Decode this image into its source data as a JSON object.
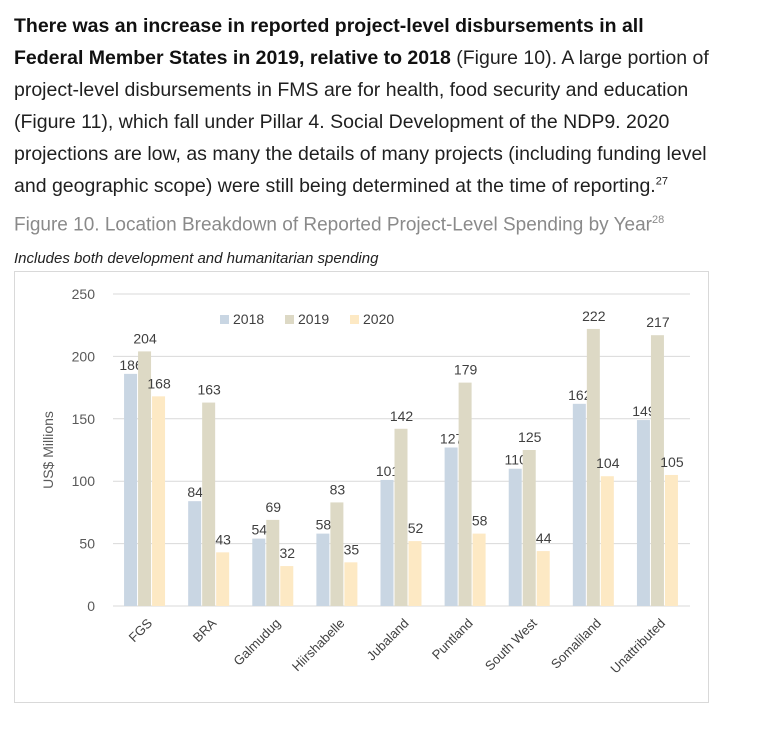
{
  "paragraph": {
    "lead": "There was an increase in reported project-level disbursements in all Federal Member States in 2019, relative to 2018",
    "body": " (Figure 10). A large portion of project-level disbursements in FMS are for health, food security and education (Figure 11), which fall under Pillar 4. Social Development of the NDP9. 2020 projections are low, as many the details of many projects (including funding level and geographic scope) were still being determined at the time of reporting.",
    "footnote": "27"
  },
  "figure": {
    "title": "Figure 10. Location Breakdown of Reported Project-Level Spending by Year",
    "title_footnote": "28",
    "subtitle": "Includes both development and humanitarian spending"
  },
  "chart_data": {
    "type": "bar",
    "title": "",
    "xlabel": "",
    "ylabel": "US$ Millions",
    "ylim": [
      0,
      250
    ],
    "yticks": [
      0,
      50,
      100,
      150,
      200,
      250
    ],
    "grid": true,
    "legend": "top-center",
    "categories": [
      "FGS",
      "BRA",
      "Galmudug",
      "Hiirshabelle",
      "Jubaland",
      "Puntland",
      "South West",
      "Somaliland",
      "Unattributed"
    ],
    "series": [
      {
        "name": "2018",
        "color": "#c9d6e3",
        "values": [
          186,
          84,
          54,
          58,
          101,
          127,
          110,
          162,
          149
        ]
      },
      {
        "name": "2019",
        "color": "#ddd9c5",
        "values": [
          204,
          163,
          69,
          83,
          142,
          179,
          125,
          222,
          217
        ]
      },
      {
        "name": "2020",
        "color": "#fde9c4",
        "values": [
          168,
          43,
          32,
          35,
          52,
          58,
          44,
          104,
          105
        ]
      }
    ]
  }
}
